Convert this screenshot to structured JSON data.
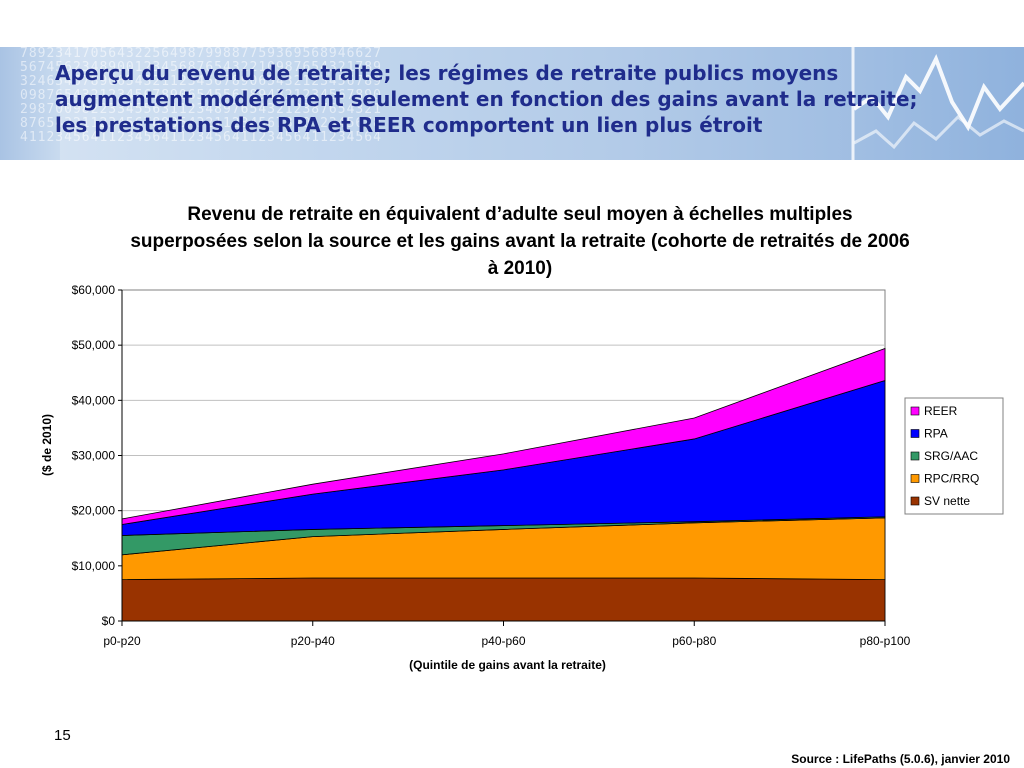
{
  "slide": {
    "title": "Aperçu du revenu de retraite; les régimes de retraite publics moyens augmentent modérément seulement en fonction des gains avant la retraite; les prestations des RPA et REER comportent un lien plus étroit",
    "page_number": "15",
    "source": "Source : LifePaths  (5.0.6), janvier 2010",
    "banner_digits": "78923417056432256498799887759369568946627\n56745623489001234568765432210987654321789\n32465467890654321123456789065432123456789\n09876543212345678906545567894321234567890\n29870098223345563112348976543212387654321\n87654321123456789054321123456789012345678\n41123456411234564112345641123456411234564"
  },
  "colors": {
    "REER": "#ff00ff",
    "RPA": "#0000ff",
    "SRG/AAC": "#339966",
    "RPC/RRQ": "#ff9900",
    "SV nette": "#993300",
    "title_text": "#1f2c8c"
  },
  "chart_data": {
    "type": "area",
    "stacked": true,
    "title": "Revenu de retraite en équivalent d’adulte seul moyen à échelles multiples superposées selon la source et les gains avant la retraite (cohorte de retraités de 2006 à 2010)",
    "xlabel": "(Quintile de gains avant la retraite)",
    "ylabel": "($ de 2010)",
    "categories": [
      "p0-p20",
      "p20-p40",
      "p40-p60",
      "p60-p80",
      "p80-p100"
    ],
    "ylim": [
      0,
      60000
    ],
    "yticks": [
      "$0",
      "$10,000",
      "$20,000",
      "$30,000",
      "$40,000",
      "$50,000",
      "$60,000"
    ],
    "grid": true,
    "legend_position": "right",
    "series": [
      {
        "name": "SV nette",
        "values": [
          7500,
          7800,
          7800,
          7800,
          7500
        ]
      },
      {
        "name": "RPC/RRQ",
        "values": [
          4500,
          7500,
          8800,
          10000,
          11200
        ]
      },
      {
        "name": "SRG/AAC",
        "values": [
          3500,
          1300,
          700,
          200,
          200
        ]
      },
      {
        "name": "RPA",
        "values": [
          2000,
          6400,
          10100,
          15000,
          24700
        ]
      },
      {
        "name": "REER",
        "values": [
          1000,
          1800,
          2900,
          3800,
          5800
        ]
      }
    ],
    "legend_order": [
      "REER",
      "RPA",
      "SRG/AAC",
      "RPC/RRQ",
      "SV nette"
    ]
  }
}
